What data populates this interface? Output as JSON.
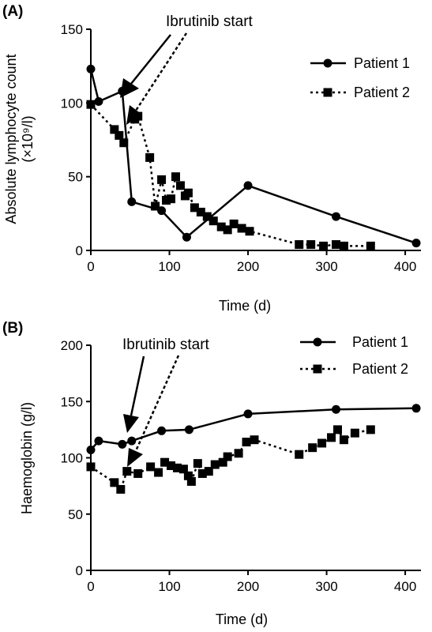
{
  "chart_data": [
    {
      "type": "line",
      "panel_label": "(A)",
      "xlabel": "Time (d)",
      "ylabel_line1": "Absolute lymphocyte count",
      "ylabel_line2": "(×10⁹/l)",
      "xlim": [
        0,
        420
      ],
      "ylim": [
        0,
        150
      ],
      "xticks": [
        "0",
        "100",
        "200",
        "300",
        "400"
      ],
      "yticks": [
        "0",
        "50",
        "100",
        "150"
      ],
      "grid": false,
      "legend_position": "top-right",
      "annotation": "Ibrutinib start",
      "series": [
        {
          "name": "Patient 1",
          "style": "solid",
          "marker": "circle",
          "x": [
            0,
            10,
            40,
            52,
            90,
            122,
            200,
            312,
            414
          ],
          "y": [
            123,
            101,
            108,
            33,
            27,
            9,
            44,
            23,
            5
          ]
        },
        {
          "name": "Patient 2",
          "style": "dotted",
          "marker": "square",
          "x": [
            0,
            30,
            36,
            42,
            56,
            60,
            75,
            82,
            90,
            96,
            102,
            108,
            114,
            120,
            124,
            132,
            140,
            148,
            156,
            166,
            174,
            182,
            192,
            202,
            265,
            280,
            296,
            312,
            322,
            356
          ],
          "y": [
            99,
            82,
            78,
            73,
            89,
            91,
            63,
            30,
            48,
            34,
            35,
            50,
            44,
            37,
            39,
            29,
            26,
            23,
            20,
            16,
            14,
            18,
            15,
            13,
            4,
            4,
            3,
            4,
            3,
            3
          ]
        }
      ]
    },
    {
      "type": "line",
      "panel_label": "(B)",
      "xlabel": "Time (d)",
      "ylabel": "Haemoglobin (g/l)",
      "xlim": [
        0,
        420
      ],
      "ylim": [
        0,
        200
      ],
      "xticks": [
        "0",
        "100",
        "200",
        "300",
        "400"
      ],
      "yticks": [
        "0",
        "50",
        "100",
        "150",
        "200"
      ],
      "grid": false,
      "legend_position": "top-right",
      "annotation": "Ibrutinib start",
      "series": [
        {
          "name": "Patient 1",
          "style": "solid",
          "marker": "circle",
          "x": [
            0,
            10,
            40,
            52,
            90,
            125,
            200,
            312,
            414
          ],
          "y": [
            107,
            115,
            112,
            115,
            124,
            125,
            139,
            143,
            144
          ]
        },
        {
          "name": "Patient 2",
          "style": "dotted",
          "marker": "square",
          "x": [
            0,
            30,
            38,
            46,
            60,
            76,
            86,
            94,
            102,
            110,
            118,
            124,
            128,
            136,
            142,
            150,
            158,
            168,
            174,
            188,
            198,
            208,
            265,
            282,
            294,
            306,
            314,
            322,
            336,
            356
          ],
          "y": [
            92,
            78,
            72,
            88,
            86,
            92,
            87,
            96,
            93,
            91,
            90,
            84,
            79,
            95,
            86,
            88,
            94,
            96,
            101,
            104,
            114,
            116,
            103,
            109,
            113,
            118,
            125,
            116,
            122,
            125
          ]
        }
      ]
    }
  ],
  "colors": {
    "ink": "#000000",
    "background": "#ffffff"
  }
}
